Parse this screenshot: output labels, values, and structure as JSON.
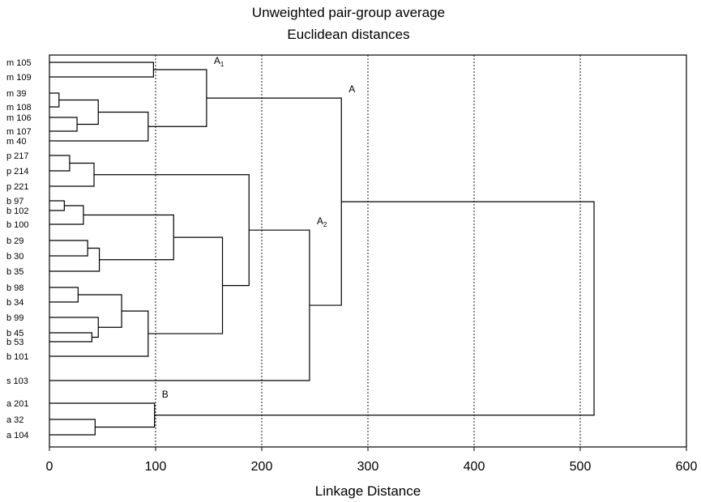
{
  "chart_data": {
    "type": "dendrogram",
    "title": [
      "Unweighted pair-group average",
      "Euclidean distances"
    ],
    "xlabel": "Linkage Distance",
    "xlim": [
      0,
      600
    ],
    "x_ticks": [
      0,
      100,
      200,
      300,
      400,
      500,
      600
    ],
    "x_tick_labels": [
      "0",
      "100",
      "200",
      "300",
      "400",
      "500",
      "600"
    ],
    "grid": "vertical dotted",
    "leaves": [
      "m 105",
      "m 109",
      "m 39",
      "m 108",
      "m 106",
      "m 107",
      "m  40",
      "p 217",
      "p 214",
      "p 221",
      "b 97",
      "b 102",
      "b 100",
      "b 29",
      "b 30",
      "b 35",
      "b 98",
      "b 34",
      "b 99",
      "b 45",
      "b 53",
      "b 101",
      "s 103",
      "a 201",
      "a 32",
      "a 104"
    ],
    "merges": [
      {
        "a": "m 105",
        "b": "m 109",
        "height": 98
      },
      {
        "a": "m 39",
        "b": "m 108",
        "height": 9
      },
      {
        "a": "m 106",
        "b": "m 107",
        "height": 26
      },
      {
        "a": "N1",
        "b": "N2",
        "height": 46
      },
      {
        "a": "N3",
        "b": "m  40",
        "height": 93
      },
      {
        "a": "N0",
        "b": "N4",
        "height": 148,
        "label": "A",
        "sub": "1"
      },
      {
        "a": "p 217",
        "b": "p 214",
        "height": 19
      },
      {
        "a": "N6",
        "b": "p 221",
        "height": 42
      },
      {
        "a": "b 97",
        "b": "b 102",
        "height": 14
      },
      {
        "a": "N8",
        "b": "b 100",
        "height": 32
      },
      {
        "a": "b 29",
        "b": "b 30",
        "height": 36
      },
      {
        "a": "N10",
        "b": "b 35",
        "height": 47
      },
      {
        "a": "N9",
        "b": "N11",
        "height": 117
      },
      {
        "a": "b 98",
        "b": "b 34",
        "height": 27
      },
      {
        "a": "b 45",
        "b": "b 53",
        "height": 40
      },
      {
        "a": "b 99",
        "b": "N14",
        "height": 46
      },
      {
        "a": "N13",
        "b": "N15",
        "height": 68
      },
      {
        "a": "N16",
        "b": "b 101",
        "height": 93
      },
      {
        "a": "N12",
        "b": "N17",
        "height": 163
      },
      {
        "a": "N7",
        "b": "N18",
        "height": 188
      },
      {
        "a": "N19",
        "b": "s 103",
        "height": 245,
        "label": "A",
        "sub": "2"
      },
      {
        "a": "N5",
        "b": "N20",
        "height": 275,
        "label": "A"
      },
      {
        "a": "a 32",
        "b": "a 104",
        "height": 43
      },
      {
        "a": "a 201",
        "b": "N22",
        "height": 99,
        "label": "B"
      },
      {
        "a": "N21",
        "b": "N23",
        "height": 513
      }
    ]
  }
}
